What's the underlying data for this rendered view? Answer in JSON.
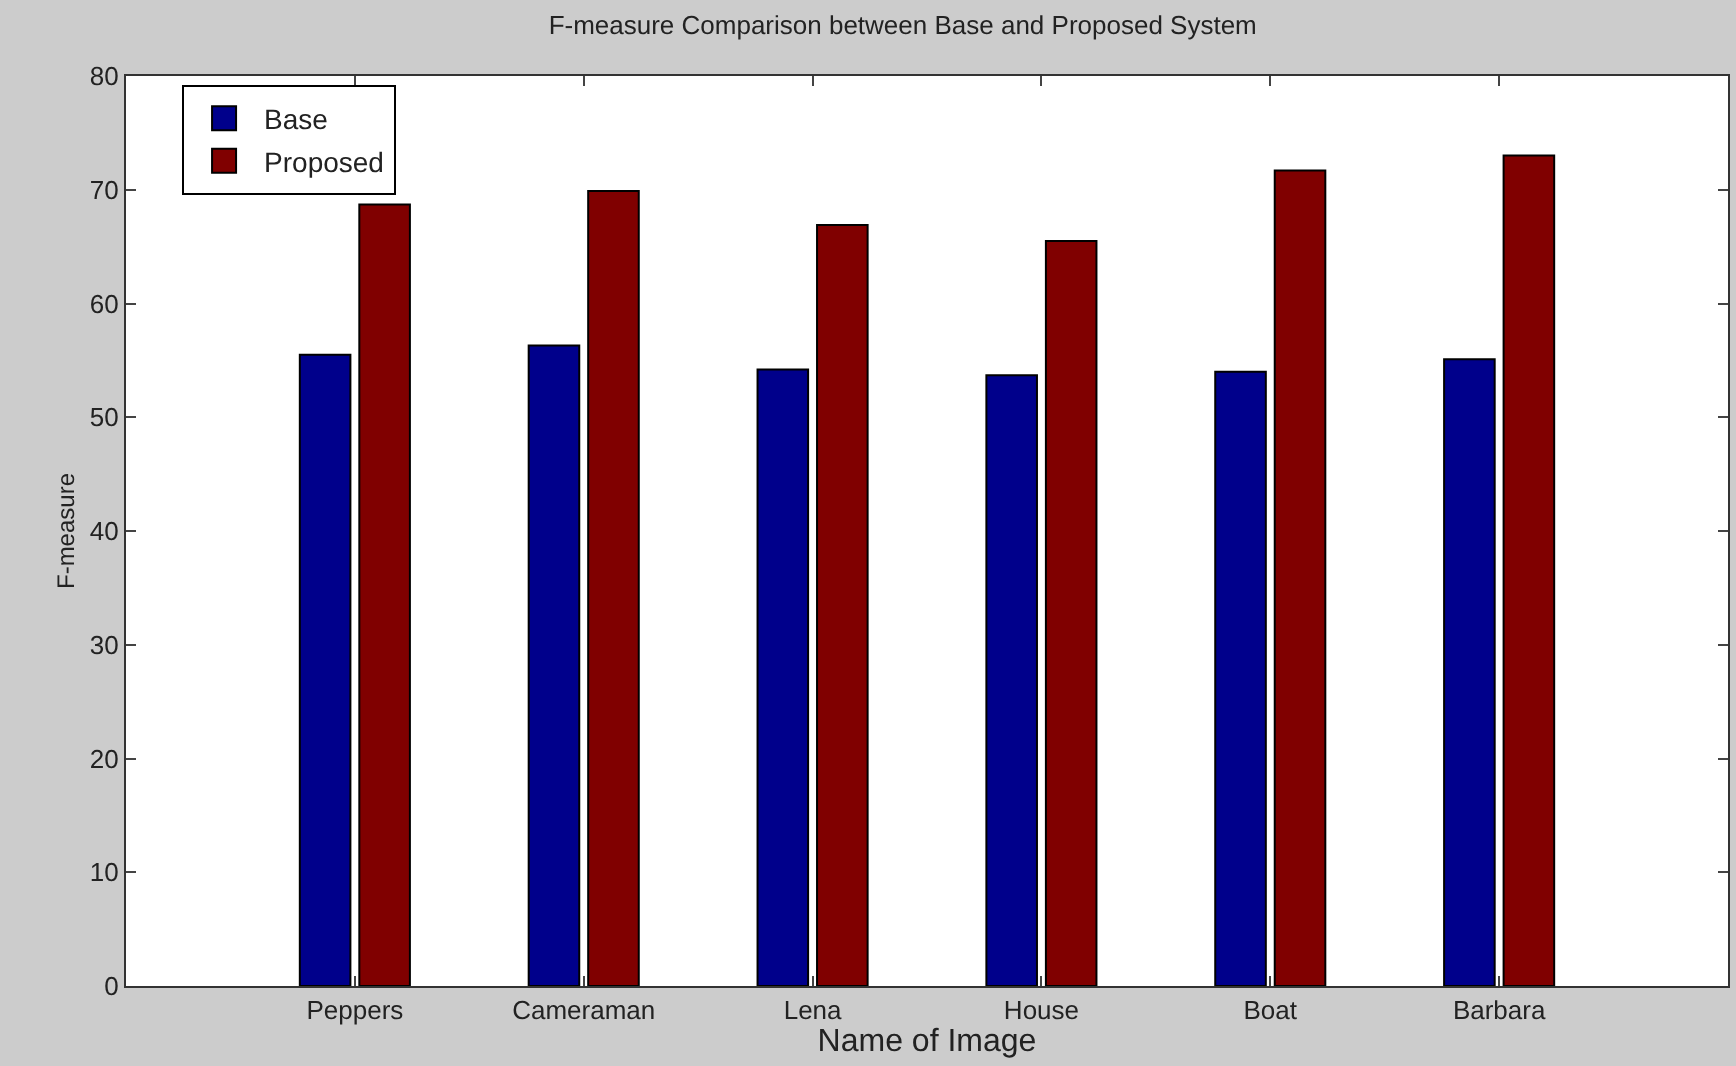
{
  "chart_data": {
    "type": "bar",
    "title": "F-measure Comparison between Base and Proposed System",
    "xlabel": "Name of Image",
    "ylabel": "F-measure",
    "categories": [
      "Peppers",
      "Cameraman",
      "Lena",
      "House",
      "Boat",
      "Barbara"
    ],
    "series": [
      {
        "name": "Base",
        "color": "#00008b",
        "values": [
          55.5,
          56.3,
          54.2,
          53.7,
          54.0,
          55.1
        ]
      },
      {
        "name": "Proposed",
        "color": "#800000",
        "values": [
          68.7,
          69.9,
          66.9,
          65.5,
          71.7,
          73.0
        ]
      }
    ],
    "ylim": [
      0,
      80
    ],
    "yticks": [
      0,
      10,
      20,
      30,
      40,
      50,
      60,
      70,
      80
    ],
    "grid": false,
    "legend": "top left"
  }
}
